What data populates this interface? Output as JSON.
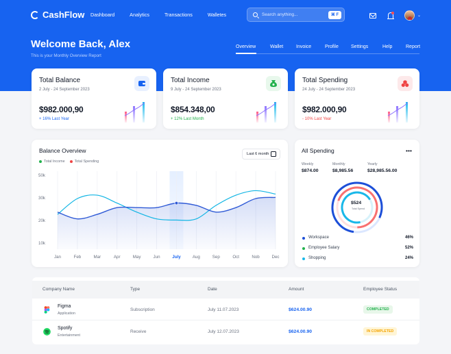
{
  "brand": "CashFlow",
  "nav": [
    "Dashboard",
    "Analytics",
    "Transactions",
    "Walletes"
  ],
  "search": {
    "placeholder": "Search anything...",
    "shortcut": "⌘ F"
  },
  "welcome": "Welcome Back, Alex",
  "subtitle": "This is your Monthly Overview Report",
  "tabs": [
    "Overview",
    "Wallet",
    "Invoice",
    "Profile",
    "Settings",
    "Help",
    "Report"
  ],
  "active_tab": "Overview",
  "cards": [
    {
      "title": "Total Balance",
      "date": "2 July - 24 September 2023",
      "value": "$982.000,90",
      "delta": "+ 16% Last Year",
      "icon": "wallet-icon",
      "color": "#1763f0"
    },
    {
      "title": "Total Income",
      "date": "9 July - 24 September 2023",
      "value": "$854.348,00",
      "delta": "+ 12% Last Month",
      "icon": "money-bag-icon",
      "color": "#22b14c"
    },
    {
      "title": "Total Spending",
      "date": "24 July - 24 September 2023",
      "value": "$982.000,90",
      "delta": "- 10% Last Year",
      "icon": "spending-icon",
      "color": "#ef4444"
    }
  ],
  "overview": {
    "title": "Balance Overview",
    "legend": [
      "Total Income",
      "Total Spending"
    ],
    "legend_colors": [
      "#22b14c",
      "#ef4444"
    ],
    "period": "Last 6 month"
  },
  "chart_data": {
    "type": "line",
    "title": "Balance Overview",
    "xlabel": "",
    "ylabel": "",
    "categories": [
      "Jan",
      "Feb",
      "Mar",
      "Apr",
      "May",
      "Jun",
      "July",
      "Aug",
      "Sep",
      "Oct",
      "Nob",
      "Dec"
    ],
    "y_ticks": [
      "50k",
      "30k",
      "20k",
      "10k"
    ],
    "ylim": [
      10,
      50
    ],
    "active_category": "July",
    "series": [
      {
        "name": "Total Income",
        "color": "#11b5e4",
        "values": [
          23,
          30,
          33,
          28,
          24,
          21,
          20.5,
          21,
          27,
          33,
          37,
          34
        ]
      },
      {
        "name": "Total Spending",
        "color": "#2f5ad6",
        "values": [
          24,
          21,
          23,
          26,
          26,
          26,
          28,
          27,
          24,
          26,
          30,
          31
        ]
      }
    ]
  },
  "spending": {
    "title": "All Spending",
    "more": "•••",
    "stats": [
      {
        "label": "Weekly",
        "value": "$874.00"
      },
      {
        "label": "Monthly",
        "value": "$8,985.56"
      },
      {
        "label": "Yearly",
        "value": "$28,985.56.00"
      }
    ],
    "center_value": "$524",
    "center_label": "Total Spend",
    "legend": [
      {
        "name": "Workspace",
        "percent": "46%",
        "color": "#1d4fd8"
      },
      {
        "name": "Employee Salary",
        "percent": "52%",
        "color": "#22b14c"
      },
      {
        "name": "Shopping",
        "percent": "24%",
        "color": "#19b8e9"
      }
    ]
  },
  "table": {
    "headers": [
      "Company Name",
      "Type",
      "Date",
      "Amount",
      "Employee Status"
    ],
    "rows": [
      {
        "company": "Figma",
        "category": "Application",
        "type": "Subscription",
        "date": "July 11.07.2023",
        "amount": "$624.00.90",
        "status": "COMPLETED",
        "icon": "figma-icon"
      },
      {
        "company": "Spotify",
        "category": "Entertainment",
        "type": "Receive",
        "date": "July 12.07.2023",
        "amount": "$624.00.90",
        "status": "IN COMPLETED",
        "icon": "spotify-icon"
      }
    ]
  }
}
